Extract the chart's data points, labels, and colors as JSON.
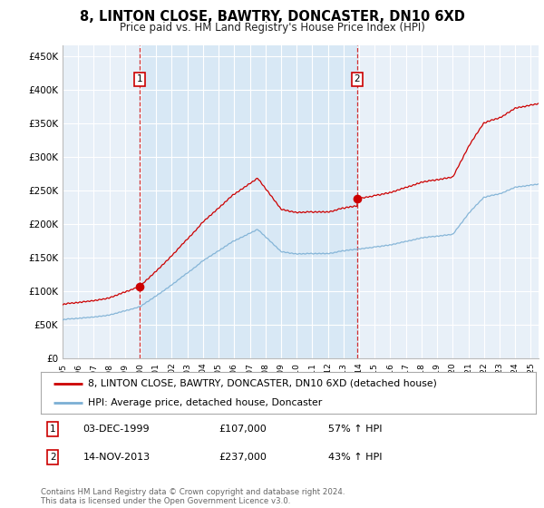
{
  "title": "8, LINTON CLOSE, BAWTRY, DONCASTER, DN10 6XD",
  "subtitle": "Price paid vs. HM Land Registry's House Price Index (HPI)",
  "plot_bg_color": "#dce8f5",
  "plot_bg_color_outside": "#f0f4fb",
  "ylim": [
    0,
    460000
  ],
  "yticks": [
    0,
    50000,
    100000,
    150000,
    200000,
    250000,
    300000,
    350000,
    400000,
    450000
  ],
  "ytick_labels": [
    "£0",
    "£50K",
    "£100K",
    "£150K",
    "£200K",
    "£250K",
    "£300K",
    "£350K",
    "£400K",
    "£450K"
  ],
  "year_start": 1995,
  "year_end": 2025,
  "sale1_year": 1999.92,
  "sale1_price": 107000,
  "sale1_date": "03-DEC-1999",
  "sale1_pct": "57%",
  "sale2_year": 2013.87,
  "sale2_price": 237000,
  "sale2_date": "14-NOV-2013",
  "sale2_pct": "43%",
  "red_line_color": "#cc0000",
  "blue_line_color": "#7bafd4",
  "legend_label1": "8, LINTON CLOSE, BAWTRY, DONCASTER, DN10 6XD (detached house)",
  "legend_label2": "HPI: Average price, detached house, Doncaster",
  "footer": "Contains HM Land Registry data © Crown copyright and database right 2024.\nThis data is licensed under the Open Government Licence v3.0."
}
